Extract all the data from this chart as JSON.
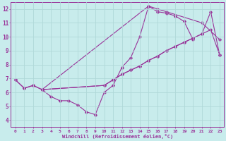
{
  "bg_color": "#c8ecec",
  "line_color": "#993399",
  "grid_color": "#b0d8d8",
  "xlabel": "Windchill (Refroidissement éolien,°C)",
  "xlim": [
    -0.5,
    23.5
  ],
  "ylim": [
    3.5,
    12.5
  ],
  "xticks": [
    0,
    1,
    2,
    3,
    4,
    5,
    6,
    7,
    8,
    9,
    10,
    11,
    12,
    13,
    14,
    15,
    16,
    17,
    18,
    19,
    20,
    21,
    22,
    23
  ],
  "yticks": [
    4,
    5,
    6,
    7,
    8,
    9,
    10,
    11,
    12
  ],
  "line1_x": [
    0,
    1,
    2,
    3,
    4,
    5,
    6,
    7,
    8,
    9,
    10,
    11,
    12,
    13,
    14,
    15,
    16,
    17,
    18,
    19,
    20
  ],
  "line1_y": [
    6.9,
    6.3,
    6.5,
    6.2,
    5.7,
    5.4,
    5.4,
    5.1,
    4.6,
    4.4,
    6.0,
    6.5,
    7.8,
    8.5,
    10.0,
    12.2,
    11.8,
    11.7,
    11.5,
    11.1,
    9.8
  ],
  "line2_x": [
    3,
    15,
    16,
    17,
    21,
    23
  ],
  "line2_y": [
    6.2,
    12.2,
    12.0,
    11.8,
    11.0,
    9.8
  ],
  "line3_x": [
    0,
    1,
    2,
    3,
    10,
    11,
    12,
    13,
    14,
    15,
    16,
    17,
    18,
    19,
    20,
    21,
    22,
    23
  ],
  "line3_y": [
    6.9,
    6.3,
    6.5,
    6.2,
    6.5,
    6.9,
    7.3,
    7.6,
    7.9,
    8.3,
    8.6,
    9.0,
    9.3,
    9.6,
    9.9,
    10.2,
    10.5,
    8.7
  ],
  "line4_x": [
    3,
    10,
    11,
    12,
    13,
    14,
    15,
    16,
    17,
    18,
    19,
    20,
    21,
    22,
    23
  ],
  "line4_y": [
    6.2,
    6.5,
    6.9,
    7.3,
    7.6,
    7.9,
    8.3,
    8.6,
    9.0,
    9.3,
    9.6,
    9.9,
    10.2,
    11.8,
    8.7
  ]
}
